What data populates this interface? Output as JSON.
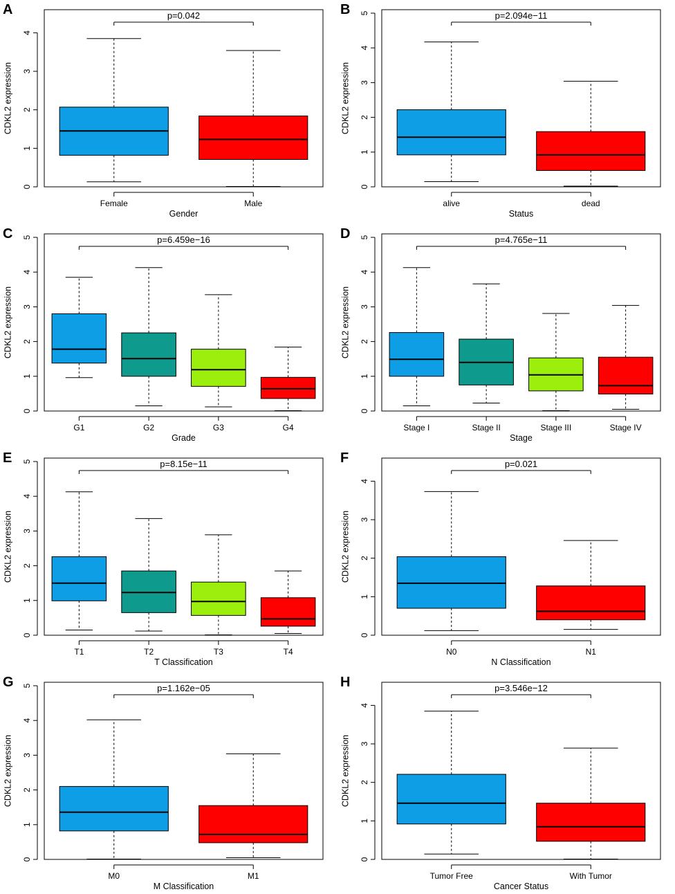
{
  "figure": {
    "ylabel": "CDKL2 expression"
  },
  "colors": {
    "blue": "#0d9ee6",
    "teal": "#0e9b8e",
    "green": "#9cee0c",
    "red": "#fe0000"
  },
  "chart_data": [
    {
      "type": "boxplot",
      "panel_label": "A",
      "xlabel": "Gender",
      "ylabel": "CDKL2 expression",
      "ylim": [
        0,
        4.6
      ],
      "yticks": [
        0,
        1,
        2,
        3,
        4
      ],
      "pvalue": "p=0.042",
      "categories": [
        "Female",
        "Male"
      ],
      "colors": [
        "#0d9ee6",
        "#fe0000"
      ],
      "boxes": [
        {
          "whisker_low": 0.13,
          "q1": 0.82,
          "median": 1.45,
          "q3": 2.07,
          "whisker_high": 3.85
        },
        {
          "whisker_low": 0.01,
          "q1": 0.71,
          "median": 1.23,
          "q3": 1.84,
          "whisker_high": 3.54
        }
      ]
    },
    {
      "type": "boxplot",
      "panel_label": "B",
      "xlabel": "Status",
      "ylabel": "CDKL2 expression",
      "ylim": [
        0,
        5.1
      ],
      "yticks": [
        0,
        1,
        2,
        3,
        4,
        5
      ],
      "pvalue": "p=2.094e−11",
      "categories": [
        "alive",
        "dead"
      ],
      "colors": [
        "#0d9ee6",
        "#fe0000"
      ],
      "boxes": [
        {
          "whisker_low": 0.15,
          "q1": 0.92,
          "median": 1.43,
          "q3": 2.22,
          "whisker_high": 4.17
        },
        {
          "whisker_low": 0.02,
          "q1": 0.47,
          "median": 0.92,
          "q3": 1.59,
          "whisker_high": 3.04
        }
      ]
    },
    {
      "type": "boxplot",
      "panel_label": "C",
      "xlabel": "Grade",
      "ylabel": "CDKL2 expression",
      "ylim": [
        0,
        5.1
      ],
      "yticks": [
        0,
        1,
        2,
        3,
        4,
        5
      ],
      "pvalue": "p=6.459e−16",
      "categories": [
        "G1",
        "G2",
        "G3",
        "G4"
      ],
      "colors": [
        "#0d9ee6",
        "#0e9b8e",
        "#9cee0c",
        "#fe0000"
      ],
      "boxes": [
        {
          "whisker_low": 0.96,
          "q1": 1.38,
          "median": 1.78,
          "q3": 2.8,
          "whisker_high": 3.85
        },
        {
          "whisker_low": 0.15,
          "q1": 1.0,
          "median": 1.51,
          "q3": 2.25,
          "whisker_high": 4.13
        },
        {
          "whisker_low": 0.12,
          "q1": 0.71,
          "median": 1.19,
          "q3": 1.78,
          "whisker_high": 3.35
        },
        {
          "whisker_low": 0.01,
          "q1": 0.36,
          "median": 0.64,
          "q3": 0.97,
          "whisker_high": 1.84
        }
      ]
    },
    {
      "type": "boxplot",
      "panel_label": "D",
      "xlabel": "Stage",
      "ylabel": "CDKL2 expression",
      "ylim": [
        0,
        5.1
      ],
      "yticks": [
        0,
        1,
        2,
        3,
        4,
        5
      ],
      "pvalue": "p=4.765e−11",
      "categories": [
        "Stage I",
        "Stage II",
        "Stage III",
        "Stage IV"
      ],
      "colors": [
        "#0d9ee6",
        "#0e9b8e",
        "#9cee0c",
        "#fe0000"
      ],
      "boxes": [
        {
          "whisker_low": 0.15,
          "q1": 1.0,
          "median": 1.49,
          "q3": 2.26,
          "whisker_high": 4.13
        },
        {
          "whisker_low": 0.23,
          "q1": 0.75,
          "median": 1.4,
          "q3": 2.07,
          "whisker_high": 3.66
        },
        {
          "whisker_low": 0.01,
          "q1": 0.58,
          "median": 1.04,
          "q3": 1.53,
          "whisker_high": 2.81
        },
        {
          "whisker_low": 0.05,
          "q1": 0.49,
          "median": 0.73,
          "q3": 1.55,
          "whisker_high": 3.04
        }
      ]
    },
    {
      "type": "boxplot",
      "panel_label": "E",
      "xlabel": "T Classification",
      "ylabel": "CDKL2 expression",
      "ylim": [
        0,
        5.1
      ],
      "yticks": [
        0,
        1,
        2,
        3,
        4,
        5
      ],
      "pvalue": "p=8.15e−11",
      "categories": [
        "T1",
        "T2",
        "T3",
        "T4"
      ],
      "colors": [
        "#0d9ee6",
        "#0e9b8e",
        "#9cee0c",
        "#fe0000"
      ],
      "boxes": [
        {
          "whisker_low": 0.15,
          "q1": 0.99,
          "median": 1.5,
          "q3": 2.26,
          "whisker_high": 4.13
        },
        {
          "whisker_low": 0.12,
          "q1": 0.65,
          "median": 1.23,
          "q3": 1.85,
          "whisker_high": 3.36
        },
        {
          "whisker_low": 0.01,
          "q1": 0.57,
          "median": 0.97,
          "q3": 1.53,
          "whisker_high": 2.89
        },
        {
          "whisker_low": 0.05,
          "q1": 0.26,
          "median": 0.47,
          "q3": 1.08,
          "whisker_high": 1.85
        }
      ]
    },
    {
      "type": "boxplot",
      "panel_label": "F",
      "xlabel": "N Classification",
      "ylabel": "CDKL2 expression",
      "ylim": [
        0,
        4.6
      ],
      "yticks": [
        0,
        1,
        2,
        3,
        4
      ],
      "pvalue": "p=0.021",
      "categories": [
        "N0",
        "N1"
      ],
      "colors": [
        "#0d9ee6",
        "#fe0000"
      ],
      "boxes": [
        {
          "whisker_low": 0.12,
          "q1": 0.7,
          "median": 1.35,
          "q3": 2.04,
          "whisker_high": 3.73
        },
        {
          "whisker_low": 0.15,
          "q1": 0.4,
          "median": 0.62,
          "q3": 1.28,
          "whisker_high": 2.46
        }
      ]
    },
    {
      "type": "boxplot",
      "panel_label": "G",
      "xlabel": "M Classification",
      "ylabel": "CDKL2 expression",
      "ylim": [
        0,
        5.1
      ],
      "yticks": [
        0,
        1,
        2,
        3,
        4,
        5
      ],
      "pvalue": "p=1.162e−05",
      "categories": [
        "M0",
        "M1"
      ],
      "colors": [
        "#0d9ee6",
        "#fe0000"
      ],
      "boxes": [
        {
          "whisker_low": 0.01,
          "q1": 0.82,
          "median": 1.36,
          "q3": 2.1,
          "whisker_high": 4.02
        },
        {
          "whisker_low": 0.05,
          "q1": 0.48,
          "median": 0.72,
          "q3": 1.55,
          "whisker_high": 3.04
        }
      ]
    },
    {
      "type": "boxplot",
      "panel_label": "H",
      "xlabel": "Cancer Status",
      "ylabel": "CDKL2 expression",
      "ylim": [
        0,
        4.6
      ],
      "yticks": [
        0,
        1,
        2,
        3,
        4
      ],
      "pvalue": "p=3.546e−12",
      "categories": [
        "Tumor Free",
        "With Tumor"
      ],
      "colors": [
        "#0d9ee6",
        "#fe0000"
      ],
      "boxes": [
        {
          "whisker_low": 0.14,
          "q1": 0.92,
          "median": 1.46,
          "q3": 2.21,
          "whisker_high": 3.85
        },
        {
          "whisker_low": 0.01,
          "q1": 0.47,
          "median": 0.85,
          "q3": 1.46,
          "whisker_high": 2.89
        }
      ]
    }
  ]
}
